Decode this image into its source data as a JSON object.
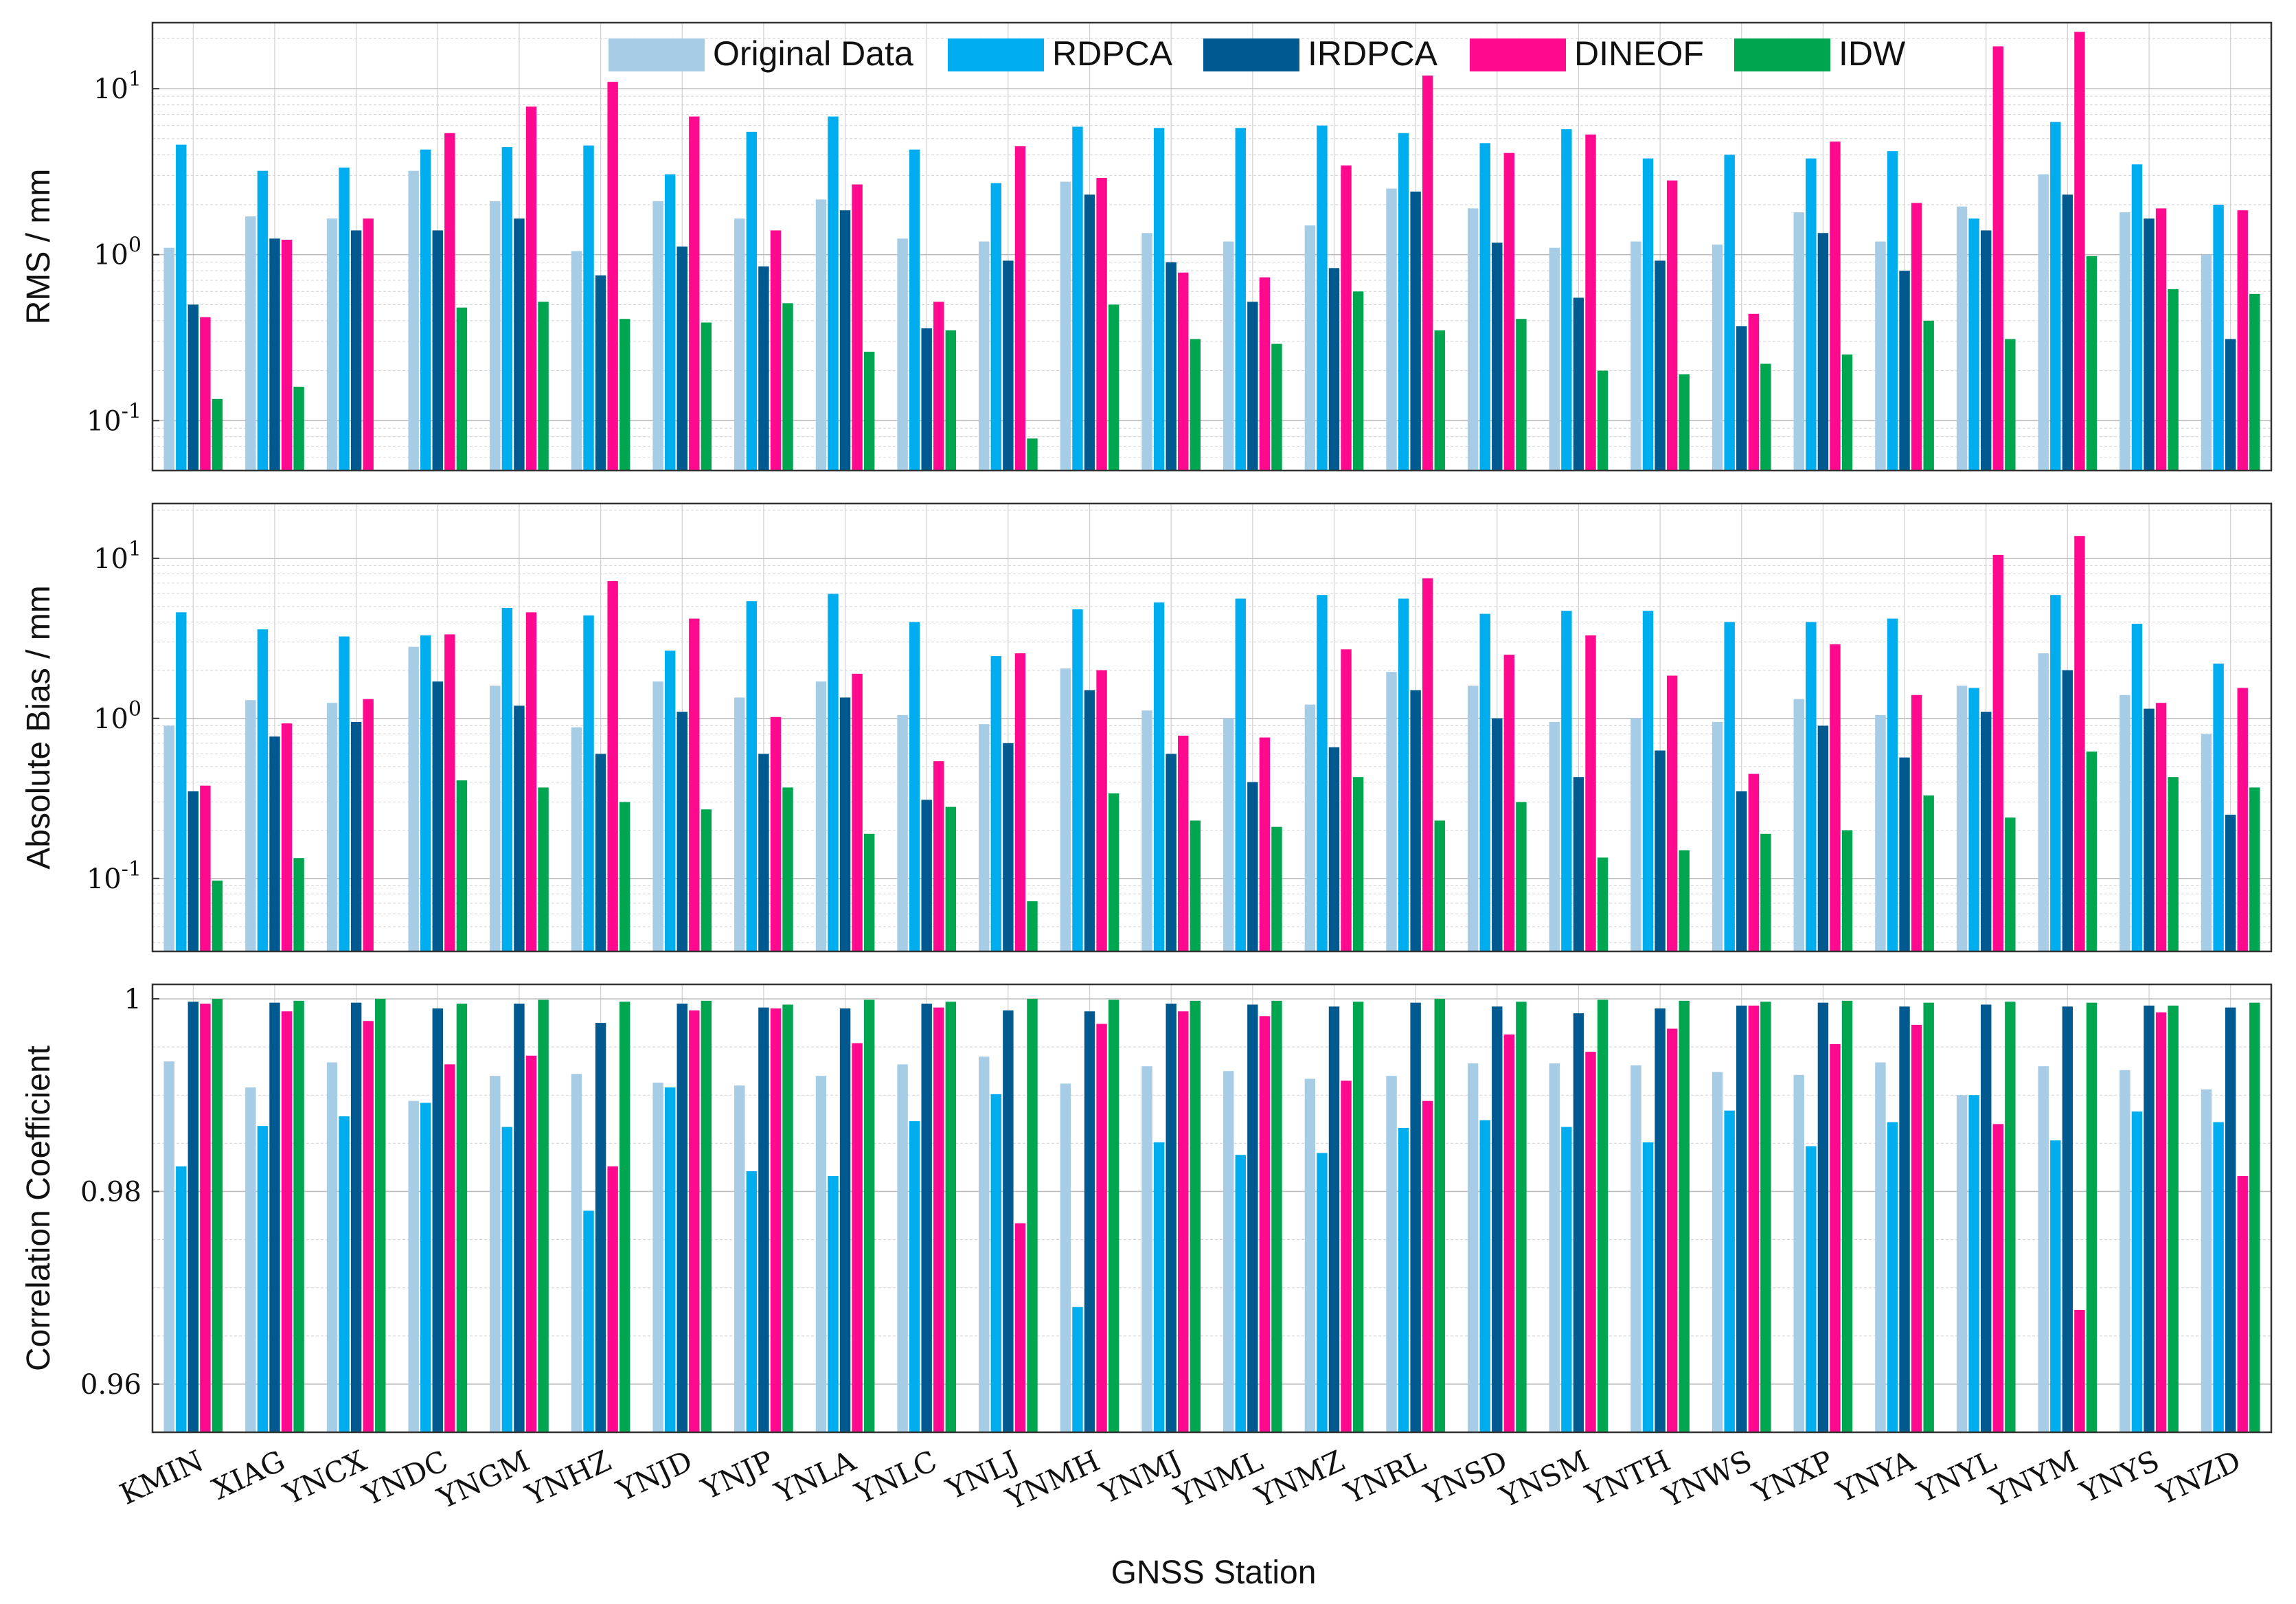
{
  "chart_data": {
    "type": "bar",
    "xlabel": "GNSS Station",
    "categories": [
      "KMIN",
      "XIAG",
      "YNCX",
      "YNDC",
      "YNGM",
      "YNHZ",
      "YNJD",
      "YNJP",
      "YNLA",
      "YNLC",
      "YNLJ",
      "YNMH",
      "YNMJ",
      "YNML",
      "YNMZ",
      "YNRL",
      "YNSD",
      "YNSM",
      "YNTH",
      "YNWS",
      "YNXP",
      "YNYA",
      "YNYL",
      "YNYM",
      "YNYS",
      "YNZD"
    ],
    "legend": {
      "placement": "top-center",
      "entries": [
        "Original Data",
        "RDPCA",
        "IRDPCA",
        "DINEOF",
        "IDW"
      ]
    },
    "colors": {
      "Original Data": "#a6cce6",
      "RDPCA": "#00aeef",
      "IRDPCA": "#005a8f",
      "DINEOF": "#ff0a8f",
      "IDW": "#00a550"
    },
    "panels": [
      {
        "ylabel": "RMS / mm",
        "yscale": "log",
        "ylim": [
          0.05,
          25
        ],
        "ytick_labels": [
          "10^{-1}",
          "10^{0}",
          "10^{1}"
        ],
        "series": [
          {
            "name": "Original Data",
            "values": [
              1.1,
              1.7,
              1.65,
              3.2,
              2.1,
              1.05,
              2.1,
              1.65,
              2.15,
              1.25,
              1.2,
              2.75,
              1.35,
              1.2,
              1.5,
              2.5,
              1.9,
              1.1,
              1.2,
              1.15,
              1.8,
              1.2,
              1.95,
              3.05,
              1.8,
              1.0
            ]
          },
          {
            "name": "RDPCA",
            "values": [
              4.6,
              3.2,
              3.35,
              4.3,
              4.45,
              4.55,
              3.05,
              5.5,
              6.8,
              4.3,
              2.7,
              5.9,
              5.8,
              5.8,
              6.0,
              5.4,
              4.7,
              5.7,
              3.8,
              4.0,
              3.8,
              4.2,
              1.65,
              6.3,
              3.5,
              2.0
            ]
          },
          {
            "name": "IRDPCA",
            "values": [
              0.5,
              1.25,
              1.4,
              1.4,
              1.65,
              0.75,
              1.12,
              0.85,
              1.85,
              0.36,
              0.92,
              2.3,
              0.9,
              0.52,
              0.83,
              2.4,
              1.18,
              0.55,
              0.92,
              0.37,
              1.35,
              0.8,
              1.4,
              2.3,
              1.65,
              0.31
            ]
          },
          {
            "name": "DINEOF",
            "values": [
              0.42,
              1.23,
              1.65,
              5.4,
              7.8,
              11.0,
              6.8,
              1.4,
              2.65,
              0.52,
              4.5,
              2.9,
              0.78,
              0.73,
              3.45,
              12.0,
              4.1,
              5.3,
              2.8,
              0.44,
              4.8,
              2.05,
              18.0,
              22.0,
              1.9,
              1.85
            ]
          },
          {
            "name": "IDW",
            "values": [
              0.135,
              0.16,
              null,
              0.48,
              0.52,
              0.41,
              0.39,
              0.51,
              0.26,
              0.35,
              0.078,
              0.5,
              0.31,
              0.29,
              0.6,
              0.35,
              0.41,
              0.2,
              0.19,
              0.22,
              0.25,
              0.4,
              0.31,
              0.98,
              0.62,
              0.58
            ]
          }
        ]
      },
      {
        "ylabel": "Absolute Bias / mm",
        "yscale": "log",
        "ylim": [
          0.035,
          22
        ],
        "ytick_labels": [
          "10^{-1}",
          "10^{0}",
          "10^{1}"
        ],
        "series": [
          {
            "name": "Original Data",
            "values": [
              0.9,
              1.3,
              1.25,
              2.8,
              1.6,
              0.88,
              1.7,
              1.35,
              1.7,
              1.05,
              0.92,
              2.05,
              1.12,
              1.0,
              1.22,
              1.95,
              1.6,
              0.95,
              1.0,
              0.95,
              1.32,
              1.05,
              1.6,
              2.55,
              1.4,
              0.8
            ]
          },
          {
            "name": "RDPCA",
            "values": [
              4.6,
              3.6,
              3.25,
              3.3,
              4.9,
              4.4,
              2.65,
              5.4,
              6.0,
              4.0,
              2.45,
              4.8,
              5.3,
              5.6,
              5.9,
              5.6,
              4.5,
              4.7,
              4.7,
              4.0,
              4.0,
              4.2,
              1.55,
              5.9,
              3.9,
              2.2
            ]
          },
          {
            "name": "IRDPCA",
            "values": [
              0.35,
              0.77,
              0.95,
              1.7,
              1.2,
              0.6,
              1.1,
              0.6,
              1.35,
              0.31,
              0.7,
              1.5,
              0.6,
              0.4,
              0.66,
              1.5,
              1.0,
              0.43,
              0.63,
              0.35,
              0.9,
              0.57,
              1.1,
              2.0,
              1.15,
              0.25
            ]
          },
          {
            "name": "DINEOF",
            "values": [
              0.38,
              0.93,
              1.32,
              3.35,
              4.6,
              7.2,
              4.2,
              1.02,
              1.9,
              0.54,
              2.55,
              2.0,
              0.78,
              0.76,
              2.7,
              7.5,
              2.5,
              3.3,
              1.85,
              0.45,
              2.9,
              1.4,
              10.5,
              13.8,
              1.25,
              1.55
            ]
          },
          {
            "name": "IDW",
            "values": [
              0.097,
              0.134,
              null,
              0.41,
              0.37,
              0.3,
              0.27,
              0.37,
              0.19,
              0.28,
              0.072,
              0.34,
              0.23,
              0.21,
              0.43,
              0.23,
              0.3,
              0.135,
              0.15,
              0.19,
              0.2,
              0.33,
              0.24,
              0.62,
              0.43,
              0.37
            ]
          }
        ]
      },
      {
        "ylabel": "Correlation Coefficient",
        "yscale": "linear",
        "ylim": [
          0.955,
          1.0015
        ],
        "ytick_labels": [
          "0.96",
          "0.98",
          "1"
        ],
        "series": [
          {
            "name": "Original Data",
            "values": [
              0.9935,
              0.9908,
              0.9934,
              0.9894,
              0.992,
              0.9922,
              0.9913,
              0.991,
              0.992,
              0.9932,
              0.994,
              0.9912,
              0.993,
              0.9925,
              0.9917,
              0.992,
              0.9933,
              0.9933,
              0.9931,
              0.9924,
              0.9921,
              0.9934,
              0.99,
              0.993,
              0.9926,
              0.9906
            ]
          },
          {
            "name": "RDPCA",
            "values": [
              0.9826,
              0.9868,
              0.9878,
              0.9892,
              0.9867,
              0.978,
              0.9908,
              0.9821,
              0.9816,
              0.9873,
              0.9901,
              0.968,
              0.9851,
              0.9838,
              0.984,
              0.9866,
              0.9874,
              0.9867,
              0.9851,
              0.9884,
              0.9847,
              0.9872,
              0.99,
              0.9853,
              0.9883,
              0.9872
            ]
          },
          {
            "name": "IRDPCA",
            "values": [
              0.9997,
              0.9996,
              0.9996,
              0.999,
              0.9995,
              0.9975,
              0.9995,
              0.9991,
              0.999,
              0.9995,
              0.9988,
              0.9987,
              0.9995,
              0.9994,
              0.9992,
              0.9996,
              0.9992,
              0.9985,
              0.999,
              0.9993,
              0.9996,
              0.9992,
              0.9994,
              0.9992,
              0.9993,
              0.9991
            ]
          },
          {
            "name": "DINEOF",
            "values": [
              0.9995,
              0.9987,
              0.9977,
              0.9932,
              0.9941,
              0.9826,
              0.9988,
              0.999,
              0.9954,
              0.9991,
              0.9767,
              0.9974,
              0.9987,
              0.9982,
              0.9915,
              0.9894,
              0.9963,
              0.9945,
              0.9969,
              0.9993,
              0.9953,
              0.9973,
              0.987,
              0.9677,
              0.9986,
              0.9816
            ]
          },
          {
            "name": "IDW",
            "values": [
              1.0,
              0.9998,
              1.0,
              0.9995,
              0.9999,
              0.9997,
              0.9998,
              0.9994,
              0.9999,
              0.9997,
              1.0,
              0.9999,
              0.9998,
              0.9998,
              0.9997,
              1.0,
              0.9997,
              0.9999,
              0.9998,
              0.9997,
              0.9998,
              0.9996,
              0.9997,
              0.9996,
              0.9993,
              0.9996
            ]
          }
        ]
      }
    ]
  }
}
